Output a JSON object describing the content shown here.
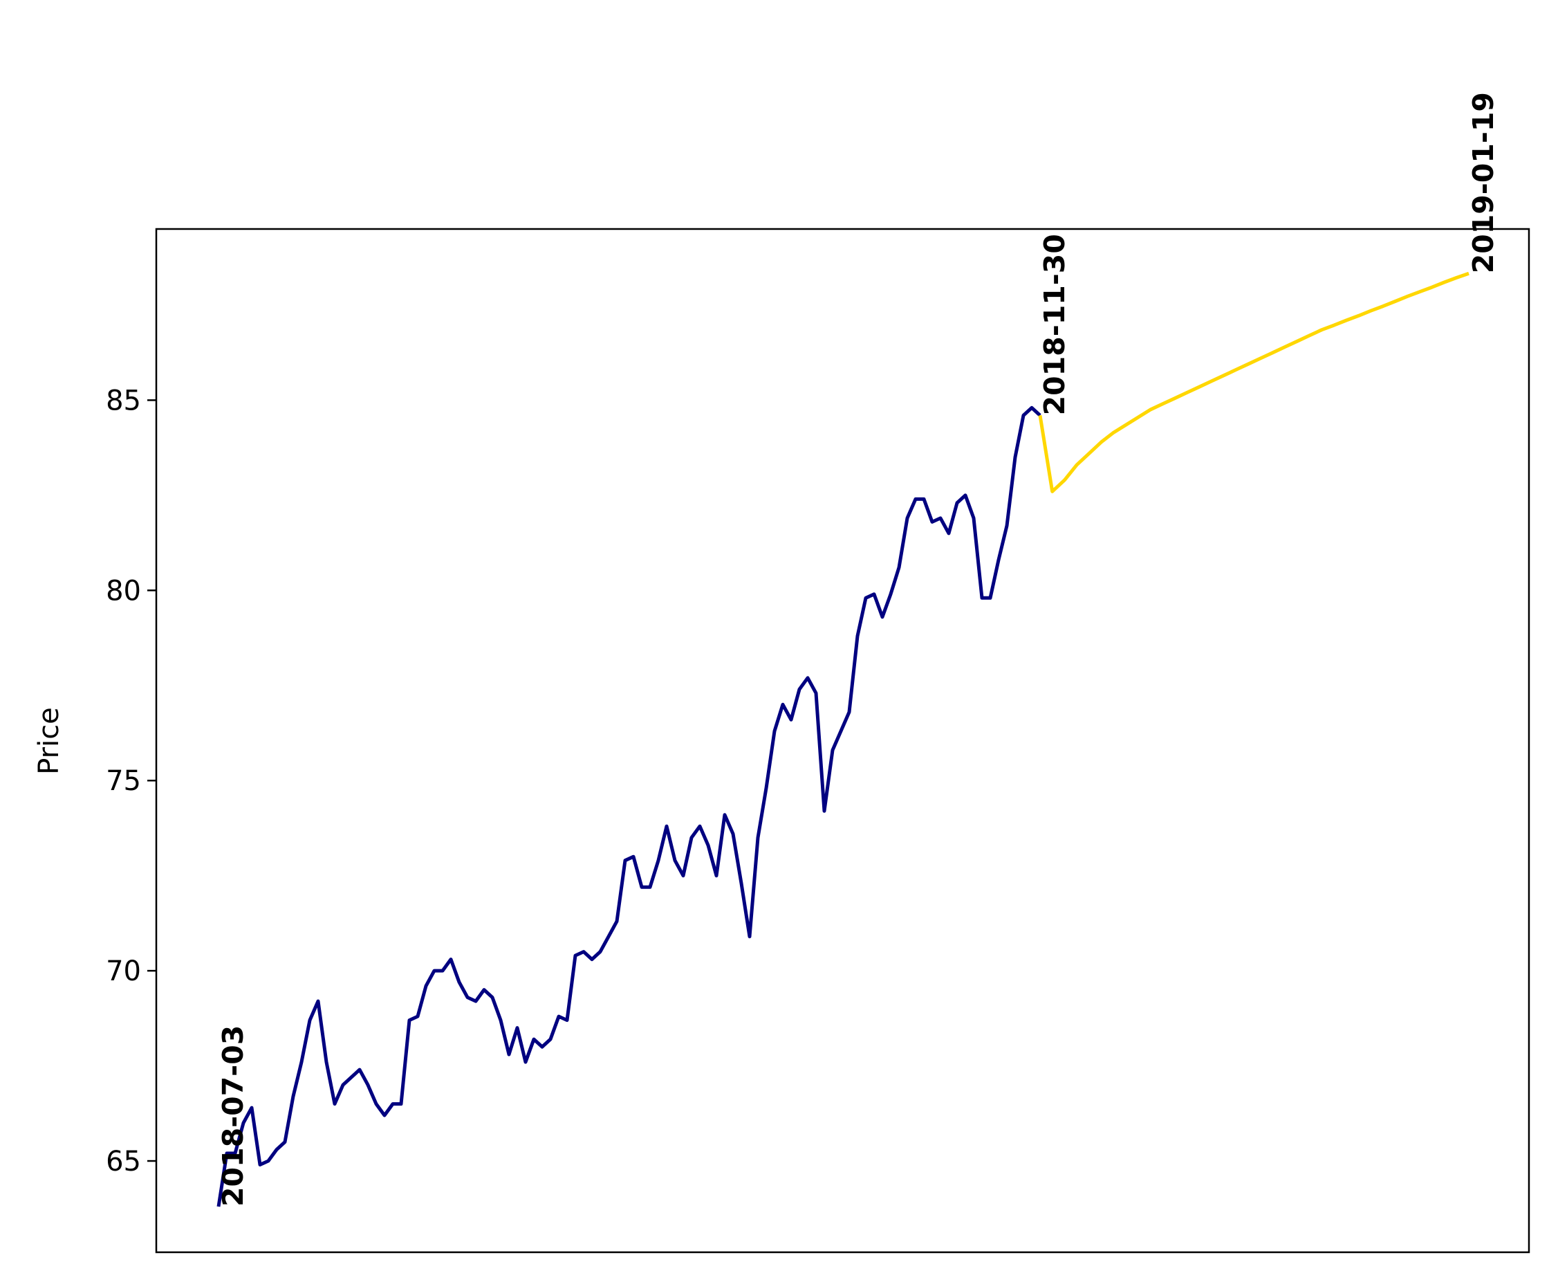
{
  "chart_data": {
    "type": "line",
    "title": "",
    "xlabel": "",
    "ylabel": "Price",
    "ylim": [
      62.6,
      89.5
    ],
    "yticks": [
      65,
      70,
      75,
      80,
      85
    ],
    "grid": false,
    "legend": "none",
    "colors": {
      "history": "#000080",
      "forecast": "#FFD700"
    },
    "series": [
      {
        "values": [
          63.8,
          65.2,
          65.2,
          66.0,
          66.4,
          64.9,
          65.0,
          65.3,
          65.5,
          66.7,
          67.6,
          68.7,
          69.2,
          67.6,
          66.5,
          67.0,
          67.2,
          67.4,
          67.0,
          66.5,
          66.2,
          66.5,
          66.5,
          68.7,
          68.8,
          69.6,
          70.0,
          70.0,
          70.3,
          69.7,
          69.3,
          69.2,
          69.5,
          69.3,
          68.7,
          67.8,
          68.5,
          67.6,
          68.2,
          68.0,
          68.2,
          68.8,
          68.7,
          70.4,
          70.5,
          70.3,
          70.5,
          70.9,
          71.3,
          72.9,
          73.0,
          72.2,
          72.2,
          72.9,
          73.8,
          72.9,
          72.5,
          73.5,
          73.8,
          73.3,
          72.5,
          74.1,
          73.6,
          72.3,
          70.9,
          73.5,
          74.8,
          76.3,
          77.0,
          76.6,
          77.4,
          77.7,
          77.3,
          74.2,
          75.8,
          76.3,
          76.8,
          78.8,
          79.8,
          79.9,
          79.3,
          79.9,
          80.6,
          81.9,
          82.4,
          82.4,
          81.8,
          81.9,
          81.5,
          82.3,
          82.5,
          81.9,
          79.8,
          79.8,
          80.8,
          81.7,
          83.5,
          84.6,
          84.8,
          84.6
        ]
      },
      {
        "values": [
          84.6,
          82.6,
          82.9,
          83.3,
          83.6,
          83.9,
          84.15,
          84.35,
          84.55,
          84.75,
          84.9,
          85.05,
          85.2,
          85.35,
          85.5,
          85.65,
          85.8,
          85.95,
          86.1,
          86.25,
          86.4,
          86.55,
          86.7,
          86.85,
          86.97,
          87.1,
          87.22,
          87.35,
          87.47,
          87.6,
          87.73,
          87.85,
          87.97,
          88.1,
          88.22,
          88.33
        ]
      }
    ],
    "annotations": [
      {
        "text": "2018-07-03",
        "series": 0,
        "index": 0
      },
      {
        "text": "2018-11-30",
        "series": 0,
        "index": 99
      },
      {
        "text": "2019-01-19",
        "series": 1,
        "index": 35
      }
    ]
  }
}
